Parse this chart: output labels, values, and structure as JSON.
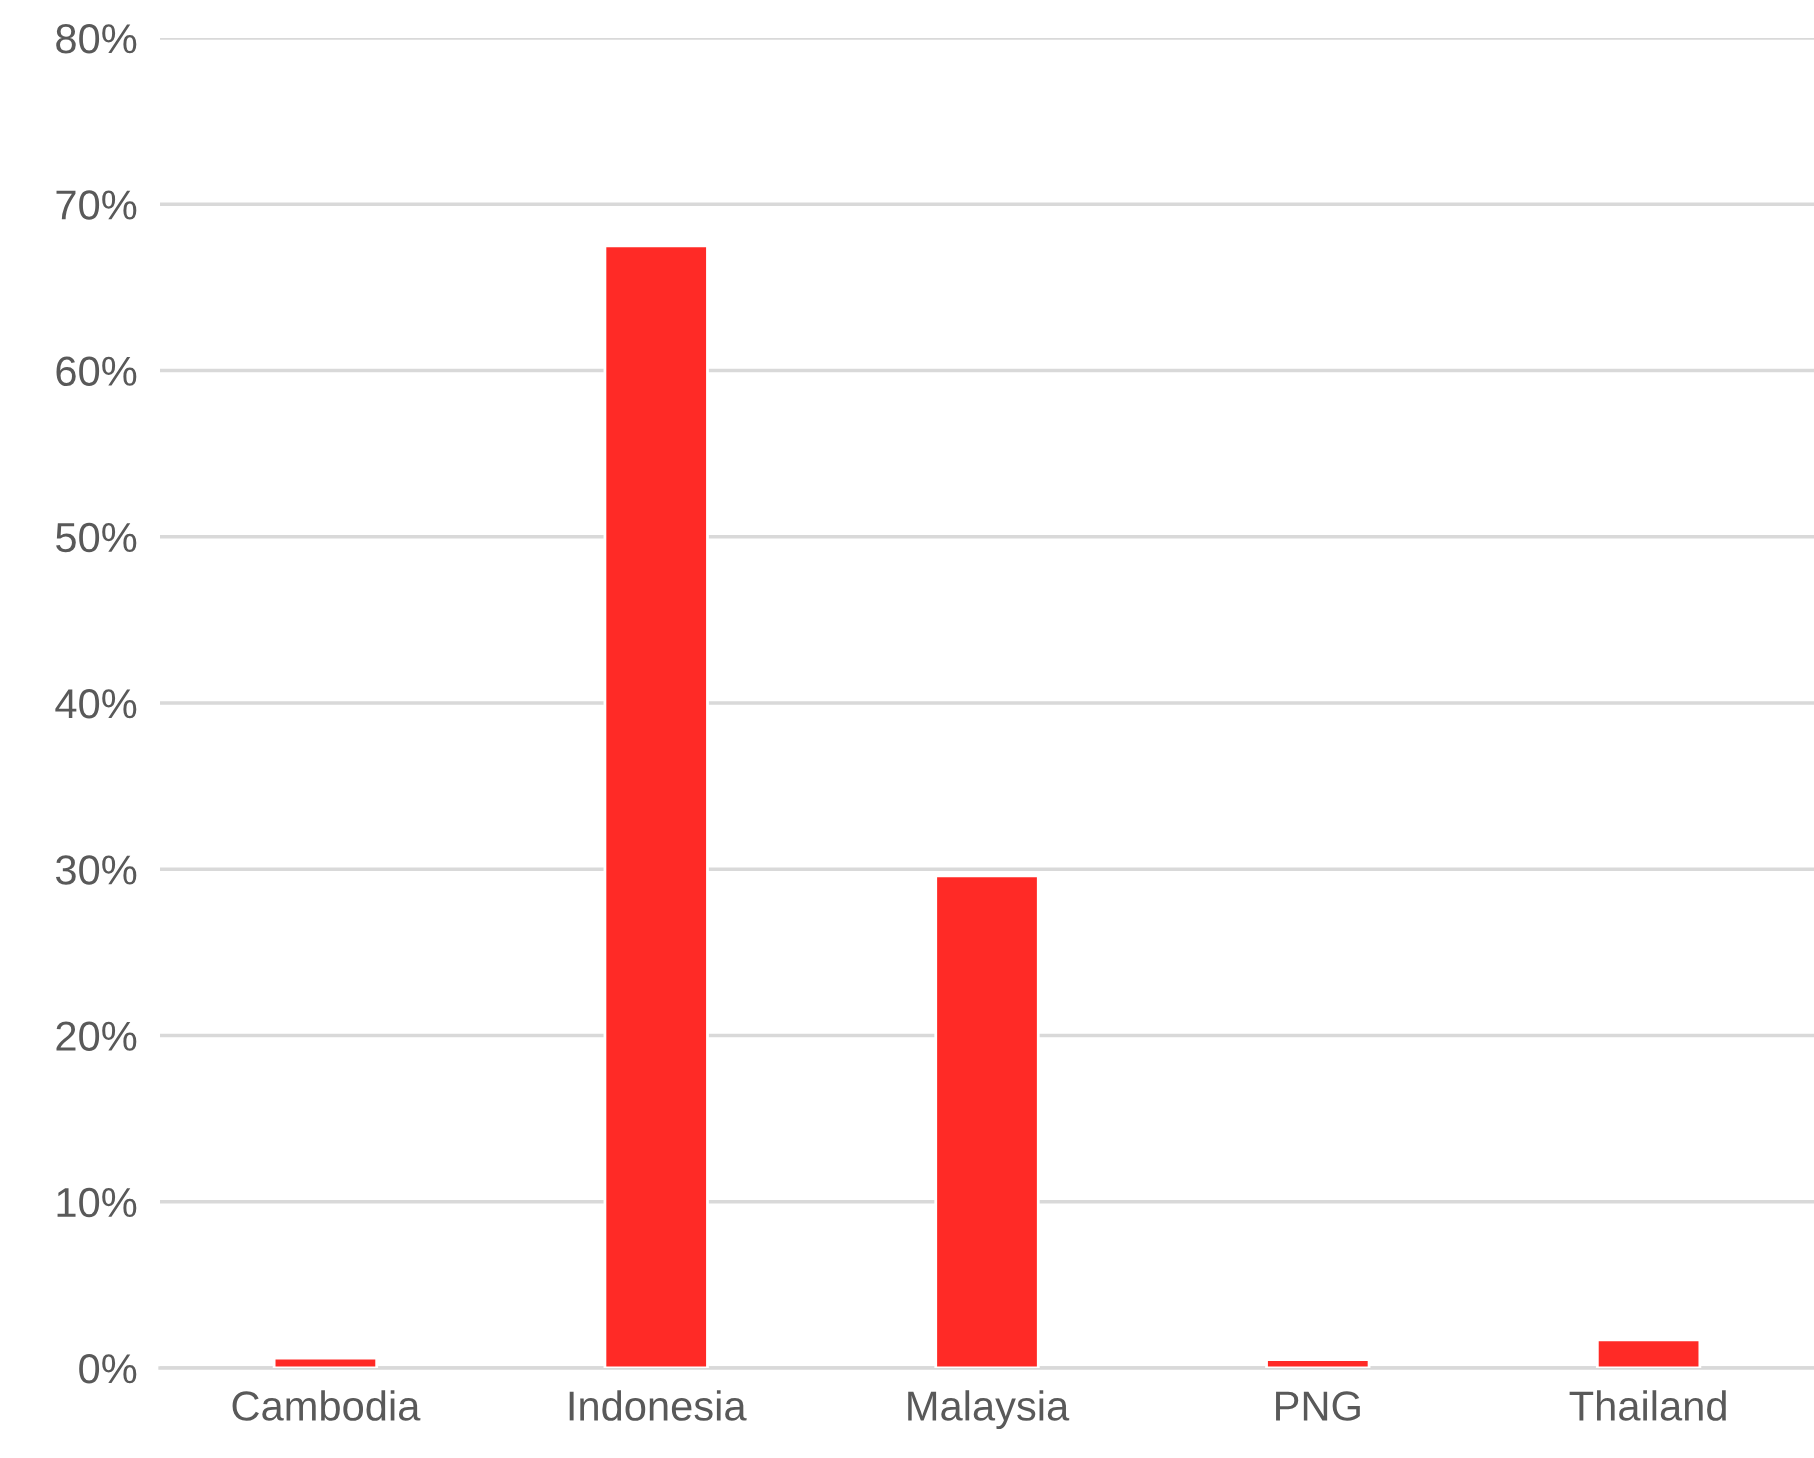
{
  "chart_data": {
    "type": "bar",
    "categories": [
      "Cambodia",
      "Indonesia",
      "Malaysia",
      "PNG",
      "Thailand"
    ],
    "values": [
      0.6,
      67.5,
      29.6,
      0.5,
      1.7
    ],
    "color": "#ff2a26",
    "ylim": [
      0,
      80
    ],
    "yticks": [
      {
        "value": 0,
        "label": "0%"
      },
      {
        "value": 10,
        "label": "10%"
      },
      {
        "value": 20,
        "label": "20%"
      },
      {
        "value": 30,
        "label": "30%"
      },
      {
        "value": 40,
        "label": "40%"
      },
      {
        "value": 50,
        "label": "50%"
      },
      {
        "value": 60,
        "label": "60%"
      },
      {
        "value": 70,
        "label": "70%"
      },
      {
        "value": 80,
        "label": "80%"
      }
    ],
    "grid": "y"
  }
}
